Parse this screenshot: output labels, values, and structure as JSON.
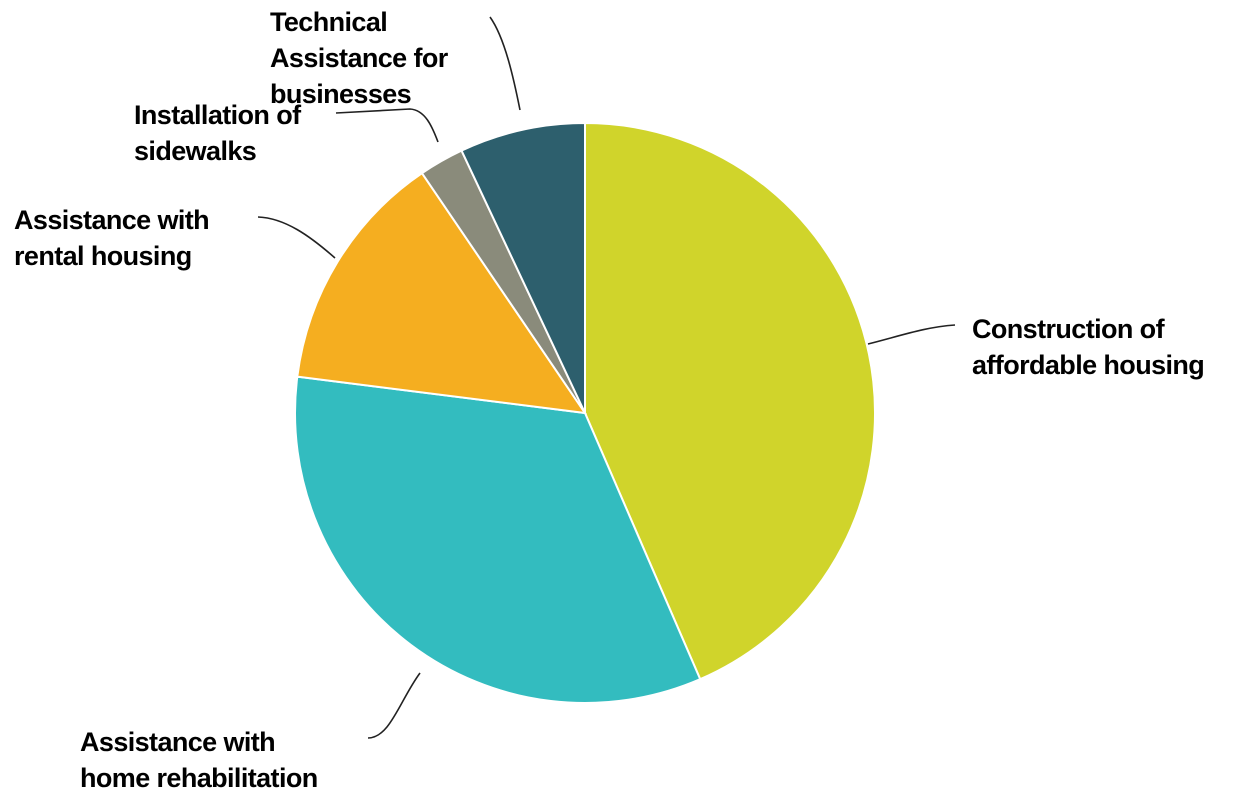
{
  "chart_data": {
    "type": "pie",
    "title": "",
    "start_angle_deg": 0,
    "direction": "clockwise",
    "slices": [
      {
        "label_lines": [
          "Construction of",
          "affordable housing"
        ],
        "value": 43.5,
        "color": "#d0d42b"
      },
      {
        "label_lines": [
          "Assistance with",
          "home rehabilitation"
        ],
        "value": 33.5,
        "color": "#33bcbf"
      },
      {
        "label_lines": [
          "Assistance with",
          "rental housing"
        ],
        "value": 13.5,
        "color": "#f5ae20"
      },
      {
        "label_lines": [
          "Installation of",
          "sidewalks"
        ],
        "value": 2.5,
        "color": "#8a8b7b"
      },
      {
        "label_lines": [
          "Technical",
          "Assistance for",
          "businesses"
        ],
        "value": 7.0,
        "color": "#2d5f6d"
      }
    ]
  }
}
